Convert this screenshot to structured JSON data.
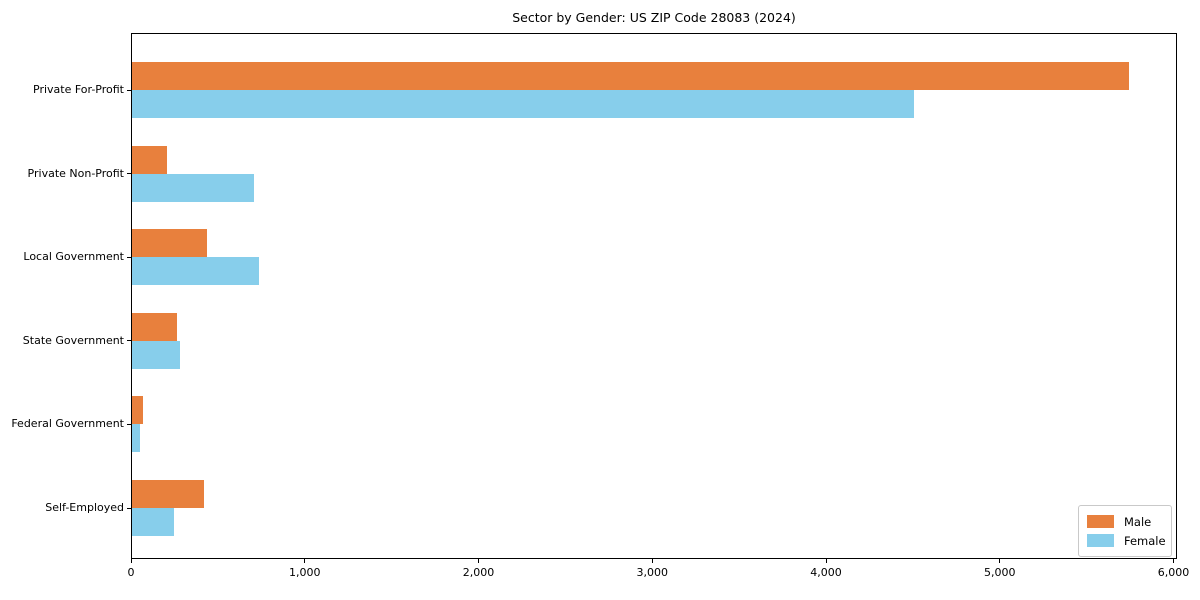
{
  "chart_data": {
    "type": "bar",
    "orientation": "horizontal",
    "title": "Sector by Gender: US ZIP Code 28083 (2024)",
    "categories": [
      "Private For-Profit",
      "Private Non-Profit",
      "Local Government",
      "State Government",
      "Federal Government",
      "Self-Employed"
    ],
    "series": [
      {
        "name": "Male",
        "color": "#E8803D",
        "values": [
          5740,
          200,
          430,
          260,
          65,
          415
        ]
      },
      {
        "name": "Female",
        "color": "#87CEEB",
        "values": [
          4500,
          700,
          730,
          275,
          45,
          240
        ]
      }
    ],
    "xlabel": "",
    "ylabel": "",
    "xlim": [
      0,
      6020
    ],
    "xticks": [
      0,
      1000,
      2000,
      3000,
      4000,
      5000,
      6000
    ],
    "xtick_labels": [
      "0",
      "1,000",
      "2,000",
      "3,000",
      "4,000",
      "5,000",
      "6,000"
    ],
    "grid": false,
    "legend": {
      "position": "lower right"
    },
    "colors": {
      "background": "#ffffff",
      "spine": "#000000",
      "text": "#000000",
      "legend_border": "#c9c9c9"
    }
  }
}
